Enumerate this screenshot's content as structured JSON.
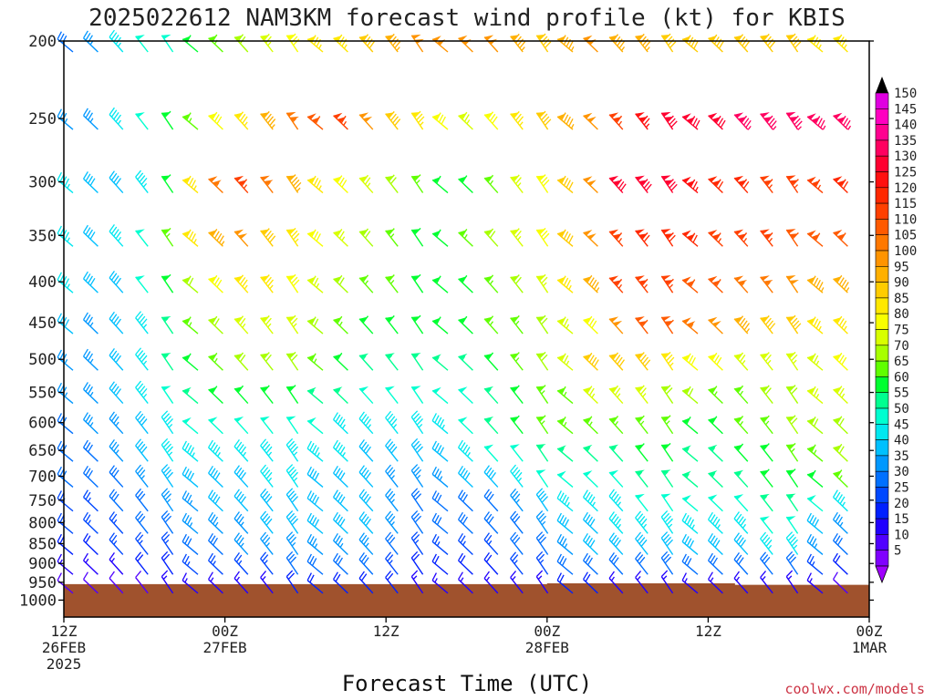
{
  "chart_data": {
    "type": "wind_profile",
    "title": "2025022612 NAM3KM forecast wind profile (kt) for KBIS",
    "xlabel": "Forecast Time (UTC)",
    "credit": "coolwx.com/models",
    "y_levels_hpa": [
      200,
      250,
      300,
      350,
      400,
      450,
      500,
      550,
      600,
      650,
      700,
      750,
      800,
      850,
      900,
      950,
      1000
    ],
    "x_ticks": [
      {
        "hour": 0,
        "lines": [
          "12Z",
          "26FEB",
          "2025"
        ]
      },
      {
        "hour": 12,
        "lines": [
          "00Z",
          "27FEB"
        ]
      },
      {
        "hour": 24,
        "lines": [
          "12Z"
        ]
      },
      {
        "hour": 36,
        "lines": [
          "00Z",
          "28FEB"
        ]
      },
      {
        "hour": 48,
        "lines": [
          "12Z"
        ]
      },
      {
        "hour": 60,
        "lines": [
          "00Z",
          "1MAR"
        ]
      }
    ],
    "x_range_hours": [
      0,
      60
    ],
    "y_range_hpa": [
      200,
      1050
    ],
    "colorbar_labels": [
      150,
      145,
      140,
      135,
      130,
      125,
      120,
      115,
      110,
      105,
      100,
      95,
      90,
      85,
      80,
      75,
      70,
      65,
      60,
      55,
      50,
      45,
      40,
      35,
      30,
      25,
      20,
      15,
      10,
      5
    ],
    "colorbar_colors": [
      "#e000e0",
      "#ff00c0",
      "#ff0090",
      "#ff0060",
      "#ff0030",
      "#ff1010",
      "#ff2800",
      "#ff4000",
      "#ff5a00",
      "#ff7800",
      "#ff9400",
      "#ffb000",
      "#ffcc00",
      "#ffe800",
      "#f8ff00",
      "#d8ff00",
      "#a8ff00",
      "#60ff00",
      "#00ff30",
      "#00ff90",
      "#00ffd0",
      "#00e8f0",
      "#00c0ff",
      "#0098ff",
      "#0070ff",
      "#0048ff",
      "#0020ff",
      "#2000ff",
      "#5000ff",
      "#8000ff"
    ],
    "terrain_color": "#a0522d",
    "wind_speed_rows_kt": {
      "200": [
        30,
        35,
        45,
        50,
        50,
        60,
        65,
        70,
        75,
        80,
        85,
        85,
        90,
        95,
        100,
        100,
        100,
        100,
        95,
        90,
        95,
        100,
        95,
        95,
        90,
        90,
        90,
        90,
        90,
        90,
        85,
        85,
        85
      ],
      "250": [
        35,
        35,
        45,
        50,
        60,
        65,
        80,
        85,
        95,
        105,
        110,
        115,
        100,
        90,
        85,
        80,
        75,
        80,
        85,
        90,
        95,
        100,
        115,
        125,
        130,
        130,
        130,
        135,
        135,
        135,
        135,
        135,
        140
      ],
      "300": [
        45,
        40,
        40,
        45,
        60,
        85,
        105,
        115,
        105,
        95,
        85,
        80,
        75,
        70,
        65,
        60,
        60,
        65,
        75,
        80,
        90,
        100,
        130,
        130,
        130,
        125,
        120,
        120,
        115,
        115,
        115,
        120,
        120
      ],
      "350": [
        45,
        40,
        45,
        50,
        65,
        85,
        95,
        100,
        90,
        85,
        80,
        75,
        70,
        65,
        60,
        60,
        65,
        70,
        75,
        80,
        90,
        100,
        115,
        120,
        120,
        120,
        115,
        115,
        115,
        110,
        110,
        110,
        110
      ],
      "400": [
        45,
        40,
        40,
        50,
        60,
        70,
        80,
        85,
        85,
        80,
        75,
        70,
        65,
        65,
        60,
        60,
        60,
        65,
        70,
        75,
        85,
        95,
        115,
        115,
        115,
        110,
        110,
        105,
        105,
        100,
        95,
        95,
        100
      ],
      "450": [
        40,
        35,
        40,
        45,
        55,
        65,
        70,
        75,
        75,
        75,
        70,
        65,
        60,
        60,
        60,
        60,
        60,
        65,
        65,
        70,
        75,
        80,
        100,
        110,
        110,
        105,
        100,
        95,
        90,
        90,
        85,
        85,
        85
      ],
      "500": [
        35,
        35,
        40,
        45,
        55,
        60,
        65,
        70,
        70,
        70,
        65,
        60,
        55,
        55,
        55,
        55,
        55,
        60,
        65,
        70,
        75,
        90,
        90,
        90,
        85,
        80,
        80,
        75,
        75,
        75,
        75,
        80,
        80
      ],
      "550": [
        35,
        35,
        40,
        45,
        50,
        55,
        60,
        60,
        60,
        60,
        55,
        55,
        50,
        50,
        50,
        50,
        50,
        55,
        60,
        65,
        65,
        75,
        75,
        75,
        70,
        70,
        65,
        65,
        70,
        70,
        75,
        75,
        80
      ],
      "600": [
        30,
        35,
        35,
        40,
        45,
        50,
        50,
        50,
        50,
        50,
        50,
        45,
        45,
        45,
        45,
        45,
        50,
        55,
        60,
        65,
        65,
        65,
        65,
        65,
        65,
        60,
        60,
        65,
        65,
        70,
        70,
        70,
        75
      ],
      "650": [
        30,
        30,
        35,
        40,
        45,
        45,
        45,
        45,
        45,
        45,
        45,
        45,
        40,
        40,
        40,
        40,
        45,
        50,
        50,
        55,
        55,
        55,
        55,
        60,
        60,
        55,
        55,
        60,
        60,
        65,
        65,
        70,
        70
      ],
      "700": [
        30,
        30,
        30,
        35,
        40,
        40,
        40,
        40,
        45,
        45,
        40,
        40,
        40,
        35,
        35,
        35,
        40,
        40,
        45,
        50,
        50,
        50,
        50,
        55,
        55,
        55,
        55,
        55,
        60,
        60,
        60,
        65,
        65
      ],
      "750": [
        25,
        25,
        30,
        30,
        35,
        35,
        40,
        40,
        40,
        40,
        40,
        40,
        40,
        35,
        30,
        30,
        30,
        30,
        35,
        40,
        45,
        45,
        45,
        50,
        50,
        50,
        50,
        50,
        55,
        55,
        50,
        45,
        45
      ],
      "800": [
        25,
        25,
        25,
        30,
        30,
        35,
        35,
        35,
        40,
        40,
        40,
        40,
        40,
        35,
        30,
        30,
        30,
        30,
        30,
        35,
        40,
        40,
        45,
        45,
        45,
        45,
        45,
        45,
        50,
        50,
        40,
        35,
        35
      ],
      "850": [
        20,
        20,
        25,
        25,
        25,
        30,
        30,
        35,
        35,
        35,
        35,
        35,
        35,
        30,
        25,
        25,
        25,
        25,
        30,
        30,
        35,
        40,
        40,
        40,
        40,
        40,
        40,
        40,
        45,
        45,
        35,
        30,
        30
      ],
      "900": [
        15,
        15,
        15,
        20,
        20,
        25,
        25,
        25,
        25,
        30,
        30,
        30,
        30,
        25,
        20,
        20,
        20,
        20,
        25,
        25,
        30,
        30,
        30,
        30,
        30,
        30,
        30,
        30,
        30,
        30,
        25,
        20,
        20
      ],
      "950": [
        10,
        10,
        10,
        10,
        15,
        15,
        15,
        15,
        15,
        20,
        20,
        20,
        20,
        20,
        15,
        15,
        15,
        15,
        15,
        15,
        20,
        20,
        15,
        15,
        15,
        15,
        15,
        15,
        15,
        15,
        15,
        10,
        10
      ]
    }
  }
}
